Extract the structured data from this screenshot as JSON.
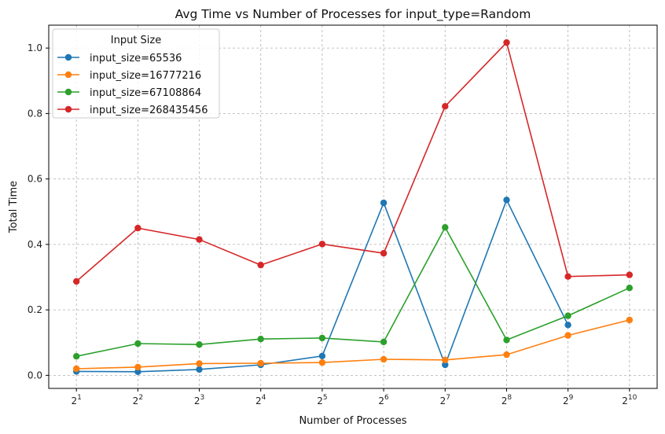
{
  "chart_data": {
    "type": "line",
    "title": "Avg Time vs Number of Processes for input_type=Random",
    "xlabel": "Number of Processes",
    "ylabel": "Total Time",
    "x_scale": "log2",
    "x": [
      2,
      4,
      8,
      16,
      32,
      64,
      128,
      256,
      512,
      1024
    ],
    "x_tick_base": "2",
    "x_tick_exponents": [
      "1",
      "2",
      "3",
      "4",
      "5",
      "6",
      "7",
      "8",
      "9",
      "10"
    ],
    "y_ticks": [
      "0.0",
      "0.2",
      "0.4",
      "0.6",
      "0.8",
      "1.0"
    ],
    "ylim": [
      -0.04,
      1.07
    ],
    "grid": true,
    "legend": {
      "title": "Input Size",
      "placement": "top-left"
    },
    "series": [
      {
        "name": "input_size=65536",
        "color": "#1f77b4",
        "values": [
          0.012,
          0.011,
          0.018,
          0.032,
          0.059,
          0.527,
          0.032,
          0.536,
          0.154,
          null
        ]
      },
      {
        "name": "input_size=16777216",
        "color": "#ff7f0e",
        "values": [
          0.02,
          0.025,
          0.036,
          0.037,
          0.039,
          0.049,
          0.047,
          0.063,
          0.122,
          0.169
        ]
      },
      {
        "name": "input_size=67108864",
        "color": "#2ca02c",
        "values": [
          0.058,
          0.097,
          0.094,
          0.111,
          0.114,
          0.102,
          0.452,
          0.108,
          0.182,
          0.267
        ]
      },
      {
        "name": "input_size=268435456",
        "color": "#d62728",
        "values": [
          0.287,
          0.45,
          0.415,
          0.337,
          0.401,
          0.373,
          0.822,
          1.017,
          0.302,
          0.307
        ]
      }
    ]
  }
}
